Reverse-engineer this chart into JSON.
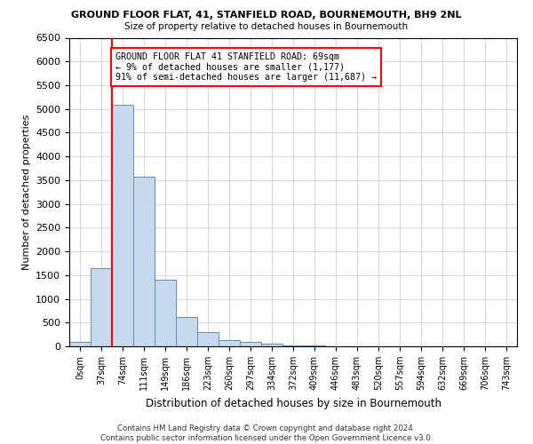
{
  "title": "GROUND FLOOR FLAT, 41, STANFIELD ROAD, BOURNEMOUTH, BH9 2NL",
  "subtitle": "Size of property relative to detached houses in Bournemouth",
  "xlabel": "Distribution of detached houses by size in Bournemouth",
  "ylabel": "Number of detached properties",
  "bar_color": "#c8d9ed",
  "bar_edge_color": "#5a8fc0",
  "bar_width": 1.0,
  "categories": [
    "0sqm",
    "37sqm",
    "74sqm",
    "111sqm",
    "149sqm",
    "186sqm",
    "223sqm",
    "260sqm",
    "297sqm",
    "334sqm",
    "372sqm",
    "409sqm",
    "446sqm",
    "483sqm",
    "520sqm",
    "557sqm",
    "594sqm",
    "632sqm",
    "669sqm",
    "706sqm",
    "743sqm"
  ],
  "values": [
    100,
    1650,
    5080,
    3580,
    1400,
    620,
    290,
    130,
    100,
    60,
    20,
    10,
    5,
    3,
    2,
    1,
    1,
    0,
    0,
    0,
    0
  ],
  "ylim": [
    0,
    6500
  ],
  "yticks": [
    0,
    500,
    1000,
    1500,
    2000,
    2500,
    3000,
    3500,
    4000,
    4500,
    5000,
    5500,
    6000,
    6500
  ],
  "red_line_x": 2,
  "annotation_text": "GROUND FLOOR FLAT 41 STANFIELD ROAD: 69sqm\n← 9% of detached houses are smaller (1,177)\n91% of semi-detached houses are larger (11,687) →",
  "footer_text": "Contains HM Land Registry data © Crown copyright and database right 2024.\nContains public sector information licensed under the Open Government Licence v3.0.",
  "background_color": "#ffffff",
  "grid_color": "#c8c8d0"
}
